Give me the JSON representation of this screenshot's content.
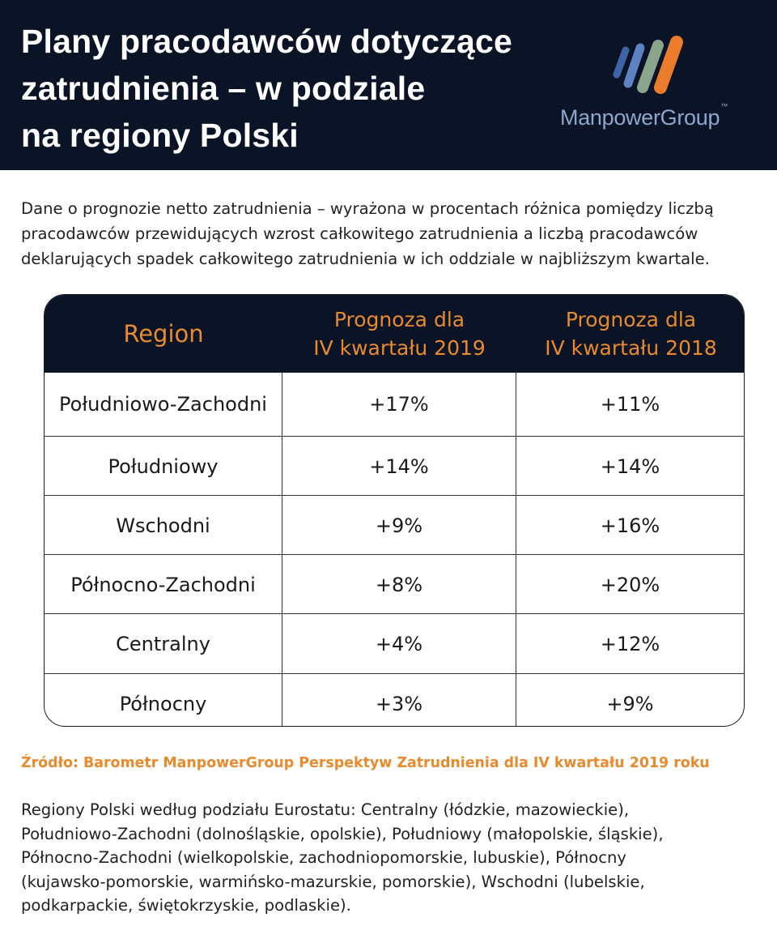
{
  "header": {
    "title_lines": [
      "Plany pracodawców dotyczące",
      "zatrudnienia – w podziale",
      "na regiony Polski"
    ],
    "logo": {
      "name": "ManpowerGroup",
      "trademark": "™",
      "stripe_colors": [
        "#3f63a8",
        "#5e83c4",
        "#8ba58c",
        "#ea7c2c"
      ]
    },
    "background_color": "#0b1426"
  },
  "intro_lines": [
    "Dane o prognozie netto zatrudnienia – wyrażona w procentach różnica pomiędzy liczbą",
    "pracodawców przewidujących wzrost całkowitego zatrudnienia a liczbą pracodawców",
    "deklarujących spadek całkowitego zatrudnienia w ich oddziale w najbliższym kwartale."
  ],
  "table": {
    "header_color": "#e98a2e",
    "columns": [
      {
        "lines": [
          "Region"
        ]
      },
      {
        "lines": [
          "Prognoza dla",
          "IV kwartału 2019"
        ]
      },
      {
        "lines": [
          "Prognoza dla",
          "IV kwartału 2018"
        ]
      }
    ],
    "rows": [
      {
        "region": "Południowo-Zachodni",
        "q4_2019": "+17%",
        "q4_2018": "+11%"
      },
      {
        "region": "Południowy",
        "q4_2019": "+14%",
        "q4_2018": "+14%"
      },
      {
        "region": "Wschodni",
        "q4_2019": "+9%",
        "q4_2018": "+16%"
      },
      {
        "region": "Północno-Zachodni",
        "q4_2019": "+8%",
        "q4_2018": "+20%"
      },
      {
        "region": "Centralny",
        "q4_2019": "+4%",
        "q4_2018": "+12%"
      },
      {
        "region": "Północny",
        "q4_2019": "+3%",
        "q4_2018": "+9%"
      }
    ]
  },
  "source": "Źródło: Barometr ManpowerGroup Perspektyw Zatrudnienia dla IV kwartału 2019 roku",
  "footnote_lines": [
    "Regiony Polski według podziału Eurostatu: Centralny (łódzkie, mazowieckie),",
    "Południowo-Zachodni (dolnośląskie, opolskie), Południowy (małopolskie, śląskie),",
    "Północno-Zachodni (wielkopolskie, zachodniopomorskie, lubuskie), Północny",
    "(kujawsko-pomorskie, warmińsko-mazurskie, pomorskie), Wschodni (lubelskie,",
    "podkarpackie, świętokrzyskie, podlaskie)."
  ]
}
